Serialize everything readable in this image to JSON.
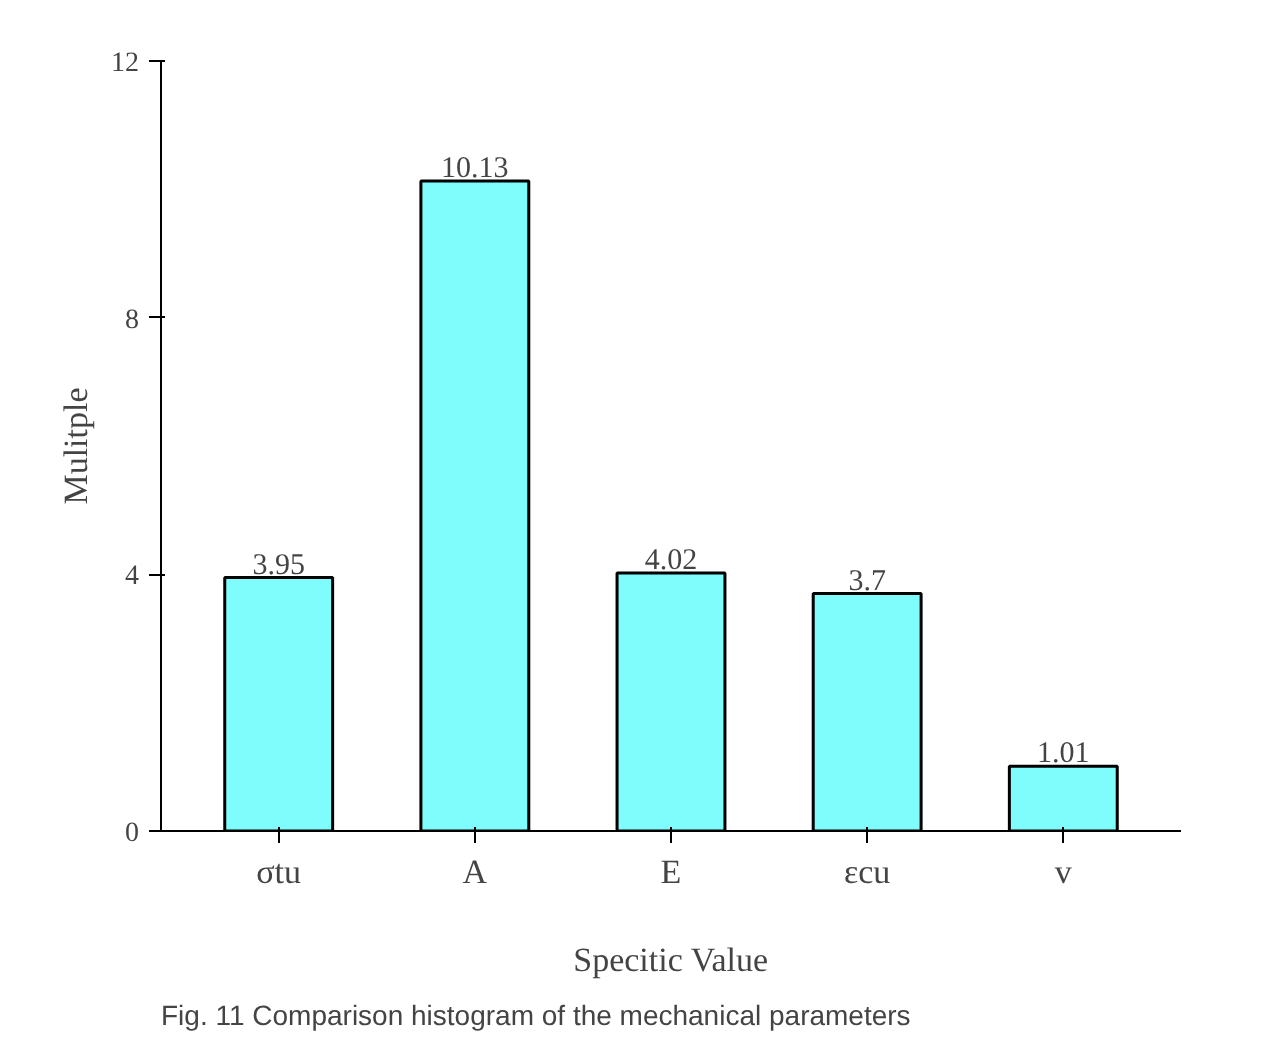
{
  "chart_data": {
    "type": "bar",
    "categories": [
      "σtu",
      "A",
      "E",
      "εcu",
      "v"
    ],
    "values": [
      3.95,
      10.13,
      4.02,
      3.7,
      1.01
    ],
    "color": "#7ffcfc",
    "xlabel": "Specitic Value",
    "ylabel": "Mulitple",
    "ylim": [
      0,
      12
    ],
    "yticks": [
      0,
      4,
      8,
      12
    ],
    "data_labels": true,
    "grid": false,
    "annotations": [
      "Fig. 11 Comparison histogram of the mechanical parameters"
    ]
  }
}
